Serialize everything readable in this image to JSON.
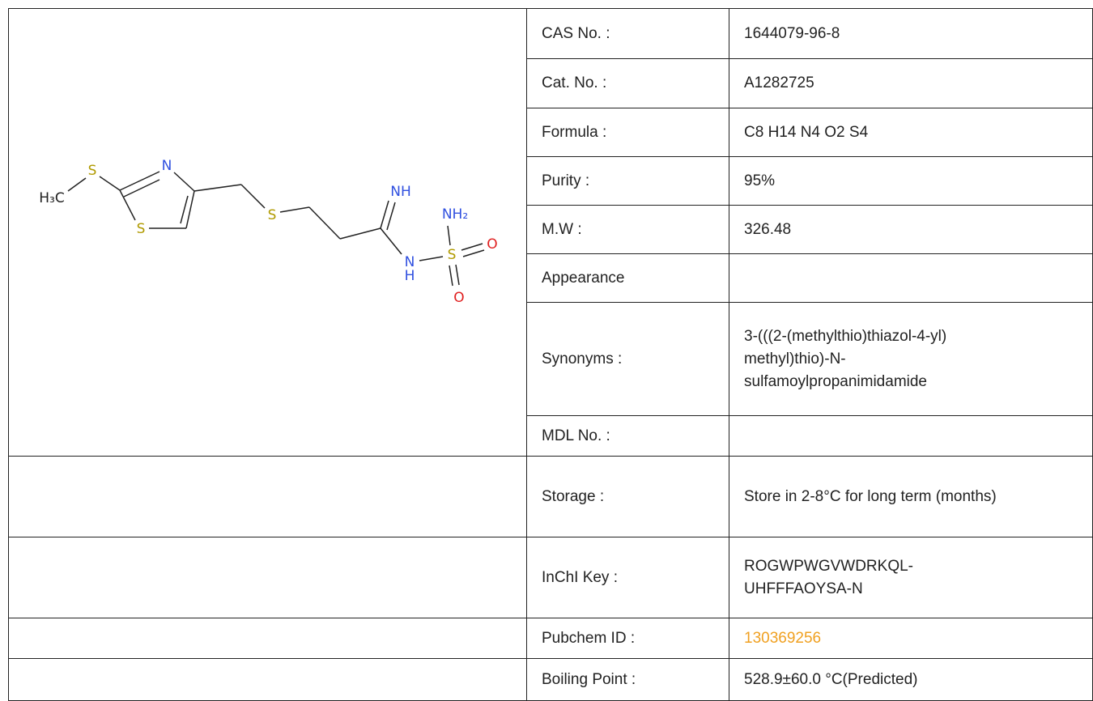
{
  "molecule": {
    "atoms": [
      "H₃C",
      "S",
      "N",
      "S",
      "S",
      "NH",
      "N",
      "H",
      "S",
      "NH₂",
      "O",
      "O"
    ]
  },
  "rows": [
    {
      "label": "CAS No. :",
      "value": "1644079-96-8"
    },
    {
      "label": "Cat. No. :",
      "value": "A1282725"
    },
    {
      "label": "Formula :",
      "value": "C8 H14 N4 O2 S4"
    },
    {
      "label": "Purity :",
      "value": "95%"
    },
    {
      "label": "M.W :",
      "value": "326.48"
    },
    {
      "label": "Appearance"
    },
    {
      "label": "Synonyms :",
      "value": "3-(((2-(methylthio)thiazol-4-yl) methyl)thio)-N-sulfamoylpropanimidamide"
    },
    {
      "label": "MDL No. :"
    },
    {
      "label": "Storage :",
      "value": "Store in 2-8°C for long term (months)"
    },
    {
      "label": "InChI Key :",
      "value": "ROGWPWGVWDRKQL-UHFFFAOYSA-N"
    },
    {
      "label": "Pubchem ID :",
      "value": "130369256",
      "link": true
    },
    {
      "label": "Boiling Point :",
      "value": "528.9±60.0 °C(Predicted)"
    }
  ]
}
